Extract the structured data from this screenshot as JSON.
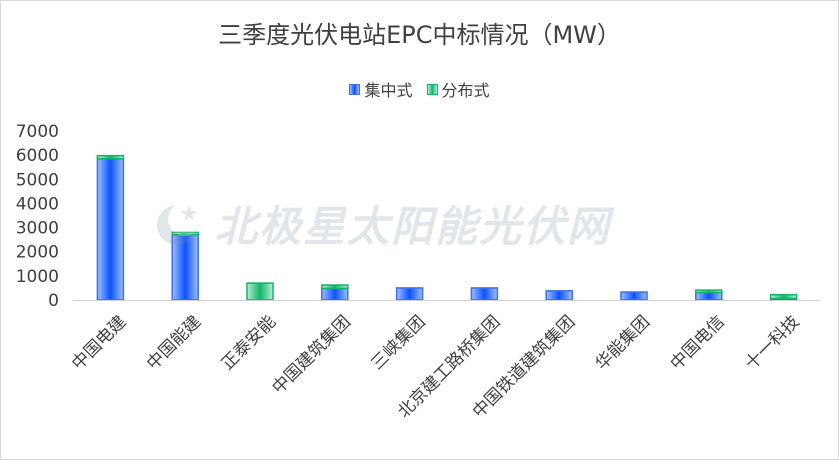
{
  "chart_data": {
    "type": "bar",
    "stacked": true,
    "title": "三季度光伏电站EPC中标情况（MW）",
    "categories": [
      "中国电建",
      "中国能建",
      "正泰安能",
      "中国建筑集团",
      "三峡集团",
      "北京建工路桥集团",
      "中国铁道建筑集团",
      "华能集团",
      "中国电信",
      "十一科技"
    ],
    "series": [
      {
        "name": "集中式",
        "values": [
          5850,
          2700,
          0,
          480,
          500,
          500,
          380,
          330,
          310,
          60
        ]
      },
      {
        "name": "分布式",
        "values": [
          130,
          100,
          700,
          140,
          0,
          0,
          0,
          0,
          100,
          160
        ]
      }
    ],
    "ylim": [
      0,
      7000
    ],
    "yticks": [
      0,
      1000,
      2000,
      3000,
      4000,
      5000,
      6000,
      7000
    ],
    "grid": false,
    "legend_position": "top",
    "colors": {
      "集中式": {
        "fill_edge": "#9ec0ff",
        "fill_center": "#0b52ff",
        "stroke": "#3f6fe0"
      },
      "分布式": {
        "fill_edge": "#b6f0d2",
        "fill_center": "#14b56a",
        "stroke": "#12b36a"
      }
    }
  },
  "watermark": {
    "text": "北极星太阳能光伏网",
    "icon": "star-moon-logo-icon"
  }
}
